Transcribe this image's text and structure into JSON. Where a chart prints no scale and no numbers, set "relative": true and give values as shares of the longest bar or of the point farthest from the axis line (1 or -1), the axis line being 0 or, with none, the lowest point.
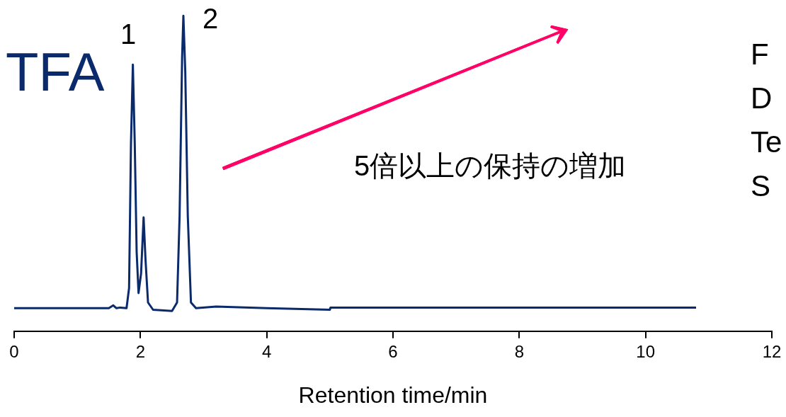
{
  "chart_data": {
    "type": "line",
    "relative": true,
    "xlabel": "Retention time/min",
    "xlim": [
      0,
      12
    ],
    "xticks": [
      0,
      2,
      4,
      6,
      8,
      10,
      12
    ],
    "grid": false,
    "legend": false,
    "annotations": [
      "TFA",
      "5倍以上の保持の増加",
      "F",
      "D",
      "Te",
      "S",
      "1",
      "2"
    ],
    "series": [
      {
        "color": "#0a2a6b",
        "x": [
          0,
          1.5,
          1.57,
          1.62,
          1.68,
          1.78,
          1.82,
          1.85,
          1.88,
          1.91,
          1.94,
          1.97,
          2.01,
          2.05,
          2.08,
          2.12,
          2.2,
          2.5,
          2.58,
          2.62,
          2.66,
          2.68,
          2.71,
          2.75,
          2.8,
          2.88,
          3.2,
          4,
          5,
          5.01,
          10.8
        ],
        "values": [
          0.073,
          0.073,
          0.082,
          0.073,
          0.075,
          0.073,
          0.137,
          0.594,
          0.845,
          0.594,
          0.251,
          0.121,
          0.183,
          0.361,
          0.228,
          0.091,
          0.068,
          0.064,
          0.091,
          0.365,
          0.868,
          1,
          0.822,
          0.365,
          0.091,
          0.073,
          0.078,
          0.073,
          0.068,
          0.075,
          0.075
        ]
      }
    ]
  }
}
